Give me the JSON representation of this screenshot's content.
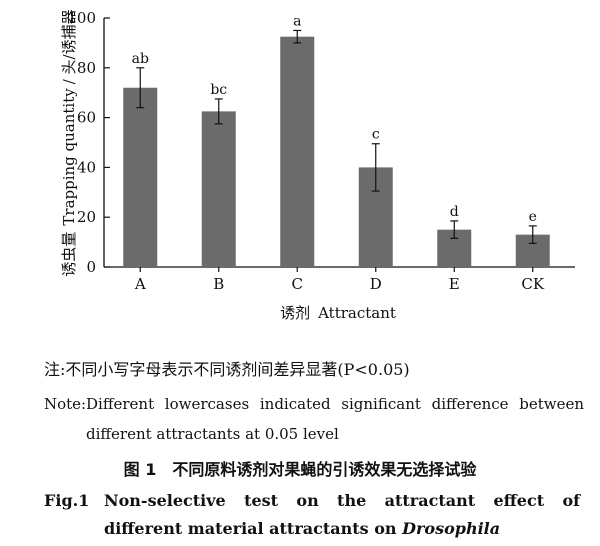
{
  "chart_data": {
    "type": "bar",
    "categories": [
      "A",
      "B",
      "C",
      "D",
      "E",
      "CK"
    ],
    "values": [
      72,
      62.5,
      92.5,
      40,
      15,
      13
    ],
    "errors": [
      8,
      5,
      2.5,
      9.5,
      3.5,
      3.5
    ],
    "significance_letters": [
      "ab",
      "bc",
      "a",
      "c",
      "d",
      "e"
    ],
    "ylim": [
      0,
      100
    ],
    "yticks": [
      "0",
      "20",
      "40",
      "60",
      "80",
      "100"
    ],
    "ylabel_cn": "诱虫量",
    "ylabel_en": "Trapping quantity",
    "ylabel_unit": "/ 头/诱捕器",
    "xlabel_cn": "诱剂",
    "xlabel_en": "Attractant",
    "bar_color": "#6b6b6b",
    "grid": false,
    "legend": "none"
  },
  "notes": {
    "cn": "注:不同小写字母表示不同诱剂间差异显著(P<0.05)",
    "en_label": "Note:",
    "en_text": "Different lowercases indicated significant difference between different attractants at 0.05 level"
  },
  "figure_title": {
    "cn": "图 1　不同原料诱剂对果蝇的引诱效果无选择试验",
    "en_label": "Fig.1",
    "en_text": "Non-selective test on the attractant effect of different material attractants on",
    "en_italic": "Drosophila"
  }
}
